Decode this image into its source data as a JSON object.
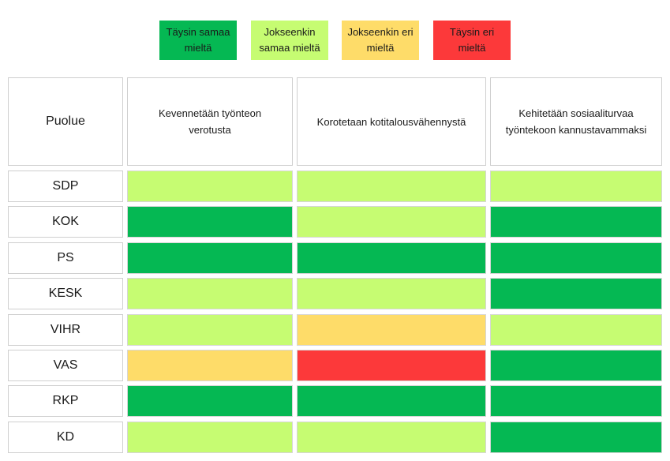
{
  "legend": [
    {
      "label": "Täysin samaa mieltä",
      "color": "#05b853"
    },
    {
      "label": "Jokseenkin samaa mieltä",
      "color": "#c6fc72"
    },
    {
      "label": "Jokseenkin eri mieltä",
      "color": "#fedc69"
    },
    {
      "label": "Täysin eri mieltä",
      "color": "#fc393a"
    }
  ],
  "chart_data": {
    "type": "table",
    "row_header": "Puolue",
    "columns": [
      "Kevennetään työnteon verotusta",
      "Korotetaan kotitalousvähennystä",
      "Kehitetään sosiaaliturvaa työntekoon kannustavammaksi"
    ],
    "rows": [
      {
        "party": "SDP",
        "values": [
          "Jokseenkin samaa mieltä",
          "Jokseenkin samaa mieltä",
          "Jokseenkin samaa mieltä"
        ]
      },
      {
        "party": "KOK",
        "values": [
          "Täysin samaa mieltä",
          "Jokseenkin samaa mieltä",
          "Täysin samaa mieltä"
        ]
      },
      {
        "party": "PS",
        "values": [
          "Täysin samaa mieltä",
          "Täysin samaa mieltä",
          "Täysin samaa mieltä"
        ]
      },
      {
        "party": "KESK",
        "values": [
          "Jokseenkin samaa mieltä",
          "Jokseenkin samaa mieltä",
          "Täysin samaa mieltä"
        ]
      },
      {
        "party": "VIHR",
        "values": [
          "Jokseenkin samaa mieltä",
          "Jokseenkin eri mieltä",
          "Jokseenkin samaa mieltä"
        ]
      },
      {
        "party": "VAS",
        "values": [
          "Jokseenkin eri mieltä",
          "Täysin eri mieltä",
          "Täysin samaa mieltä"
        ]
      },
      {
        "party": "RKP",
        "values": [
          "Täysin samaa mieltä",
          "Täysin samaa mieltä",
          "Täysin samaa mieltä"
        ]
      },
      {
        "party": "KD",
        "values": [
          "Jokseenkin samaa mieltä",
          "Jokseenkin samaa mieltä",
          "Täysin samaa mieltä"
        ]
      }
    ]
  }
}
